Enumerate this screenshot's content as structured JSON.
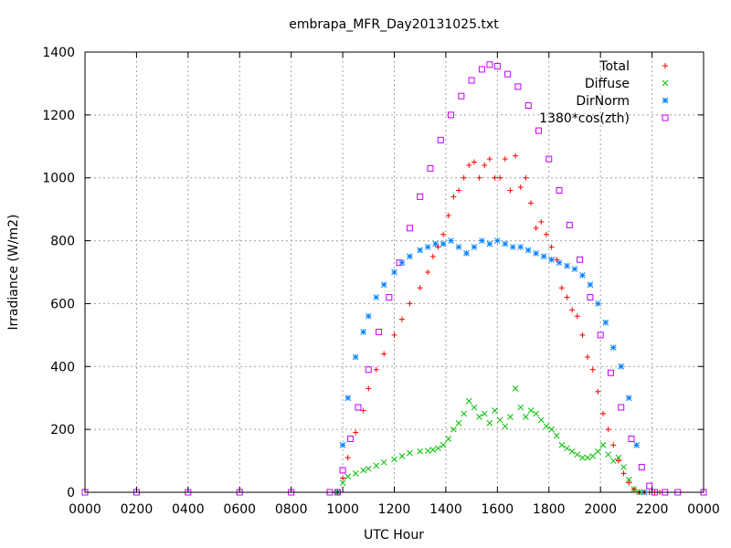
{
  "chart_data": {
    "type": "scatter",
    "title": "embrapa_MFR_Day20131025.txt",
    "xlabel": "UTC Hour",
    "ylabel": "Irradiance (W/m2)",
    "xlim": [
      0,
      24
    ],
    "ylim": [
      0,
      1400
    ],
    "x_tick_labels": [
      "0000",
      "0200",
      "0400",
      "0600",
      "0800",
      "1000",
      "1200",
      "1400",
      "1600",
      "1800",
      "2000",
      "2200",
      "0000"
    ],
    "y_tick_values": [
      0,
      200,
      400,
      600,
      800,
      1000,
      1200,
      1400
    ],
    "y_tick_labels": [
      "0",
      "200",
      "400",
      "600",
      "800",
      "1000",
      "1200",
      "1400"
    ],
    "grid": true,
    "legend_position": "top-right",
    "series": [
      {
        "name": "Total",
        "marker": "plus",
        "color": "#ff0000",
        "x": [
          9.8,
          10.0,
          10.2,
          10.5,
          10.8,
          11.0,
          11.3,
          11.6,
          12.0,
          12.3,
          12.6,
          13.0,
          13.3,
          13.5,
          13.7,
          13.9,
          14.1,
          14.3,
          14.5,
          14.7,
          14.9,
          15.1,
          15.3,
          15.5,
          15.7,
          15.9,
          16.1,
          16.3,
          16.5,
          16.7,
          16.9,
          17.1,
          17.3,
          17.5,
          17.7,
          17.9,
          18.1,
          18.3,
          18.5,
          18.7,
          18.9,
          19.1,
          19.3,
          19.5,
          19.7,
          19.9,
          20.1,
          20.3,
          20.5,
          20.7,
          20.9,
          21.1,
          21.3,
          21.5,
          21.7,
          21.9,
          22.1,
          22.3
        ],
        "y": [
          0,
          45,
          110,
          190,
          260,
          330,
          390,
          440,
          500,
          550,
          600,
          650,
          700,
          750,
          780,
          820,
          880,
          940,
          960,
          1000,
          1040,
          1050,
          1000,
          1040,
          1060,
          1000,
          1000,
          1060,
          960,
          1070,
          970,
          1000,
          920,
          840,
          860,
          820,
          780,
          740,
          650,
          620,
          580,
          560,
          500,
          430,
          390,
          320,
          250,
          200,
          150,
          100,
          60,
          30,
          10,
          0,
          0,
          0,
          0,
          0
        ]
      },
      {
        "name": "Diffuse",
        "marker": "cross",
        "color": "#00c000",
        "x": [
          9.8,
          10.0,
          10.2,
          10.5,
          10.8,
          11.0,
          11.3,
          11.6,
          12.0,
          12.3,
          12.6,
          13.0,
          13.3,
          13.5,
          13.7,
          13.9,
          14.1,
          14.3,
          14.5,
          14.7,
          14.9,
          15.1,
          15.3,
          15.5,
          15.7,
          15.9,
          16.1,
          16.3,
          16.5,
          16.7,
          16.9,
          17.1,
          17.3,
          17.5,
          17.7,
          17.9,
          18.1,
          18.3,
          18.5,
          18.7,
          18.9,
          19.1,
          19.3,
          19.5,
          19.7,
          19.9,
          20.1,
          20.3,
          20.5,
          20.7,
          20.9,
          21.1,
          21.3,
          21.5
        ],
        "y": [
          0,
          30,
          50,
          60,
          70,
          75,
          85,
          95,
          105,
          115,
          125,
          130,
          132,
          135,
          140,
          150,
          170,
          200,
          220,
          250,
          290,
          270,
          240,
          250,
          220,
          260,
          230,
          210,
          240,
          330,
          270,
          240,
          260,
          250,
          230,
          210,
          200,
          180,
          150,
          140,
          130,
          120,
          110,
          110,
          115,
          130,
          150,
          120,
          100,
          110,
          80,
          40,
          10,
          0
        ]
      },
      {
        "name": "DirNorm",
        "marker": "star",
        "color": "#0080ff",
        "x": [
          9.8,
          10.0,
          10.2,
          10.5,
          10.8,
          11.0,
          11.3,
          11.6,
          12.0,
          12.3,
          12.6,
          13.0,
          13.3,
          13.6,
          13.9,
          14.2,
          14.5,
          14.8,
          15.1,
          15.4,
          15.7,
          16.0,
          16.3,
          16.6,
          16.9,
          17.2,
          17.5,
          17.8,
          18.1,
          18.4,
          18.7,
          19.0,
          19.3,
          19.6,
          19.9,
          20.2,
          20.5,
          20.8,
          21.1,
          21.4,
          21.7
        ],
        "y": [
          0,
          150,
          300,
          430,
          510,
          560,
          620,
          660,
          700,
          730,
          750,
          770,
          780,
          790,
          790,
          800,
          780,
          760,
          780,
          800,
          790,
          800,
          790,
          780,
          780,
          770,
          760,
          750,
          740,
          730,
          720,
          710,
          690,
          660,
          600,
          540,
          460,
          400,
          300,
          150,
          0
        ]
      },
      {
        "name": "1380*cos(zth)",
        "marker": "square",
        "color": "#c000ff",
        "x": [
          0,
          2,
          4,
          6,
          8,
          9.5,
          9.8,
          10.0,
          10.3,
          10.6,
          11.0,
          11.4,
          11.8,
          12.2,
          12.6,
          13.0,
          13.4,
          13.8,
          14.2,
          14.6,
          15.0,
          15.4,
          15.7,
          16.0,
          16.4,
          16.8,
          17.2,
          17.6,
          18.0,
          18.4,
          18.8,
          19.2,
          19.6,
          20.0,
          20.4,
          20.8,
          21.2,
          21.6,
          21.9,
          22.1,
          22.5,
          23,
          24
        ],
        "y": [
          0,
          0,
          0,
          0,
          0,
          0,
          0,
          70,
          170,
          270,
          390,
          510,
          620,
          730,
          840,
          940,
          1030,
          1120,
          1200,
          1260,
          1310,
          1345,
          1360,
          1355,
          1330,
          1290,
          1230,
          1150,
          1060,
          960,
          850,
          740,
          620,
          500,
          380,
          270,
          170,
          80,
          20,
          0,
          0,
          0,
          0
        ]
      }
    ]
  }
}
